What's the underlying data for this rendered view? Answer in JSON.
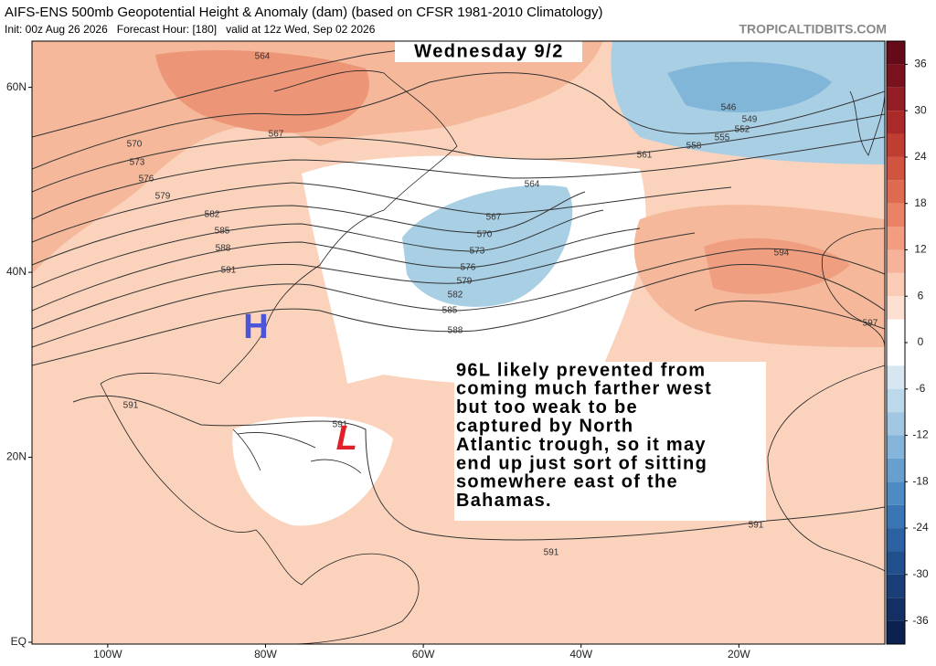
{
  "header": {
    "title": "AIFS-ENS 500mb Geopotential Height & Anomaly (dam) (based on CFSR 1981-2010 Climatology)",
    "subtitle": "Init: 00z Aug 26 2026   Forecast Hour: [180]   valid at 12z Wed, Sep 02 2026",
    "credit": "TROPICALTIDBITS.COM"
  },
  "map": {
    "day_label": "Wednesday 9/2",
    "annotation": [
      "96L likely prevented from",
      "coming much farther west",
      "but too weak to be",
      "captured by North",
      "Atlantic trough, so it may",
      "end up just sort of sitting",
      "somewhere east of the",
      "Bahamas."
    ],
    "high_label": "H",
    "low_label": "L",
    "lonlim": [
      -109.6,
      -1.5
    ],
    "latlim": [
      -0.2,
      65
    ],
    "lon_ticks": [
      {
        "value": -100,
        "label": "100W"
      },
      {
        "value": -80,
        "label": "80W"
      },
      {
        "value": -60,
        "label": "60W"
      },
      {
        "value": -40,
        "label": "40W"
      },
      {
        "value": -20,
        "label": "20W"
      }
    ],
    "lat_ticks": [
      {
        "value": 60,
        "label": "60N"
      },
      {
        "value": 40,
        "label": "40N"
      },
      {
        "value": 20,
        "label": "20N"
      },
      {
        "value": 0,
        "label": "EQ"
      }
    ],
    "contour_labels": [
      564,
      567,
      570,
      573,
      576,
      579,
      582,
      585,
      588,
      591,
      564,
      567,
      570,
      573,
      576,
      579,
      582,
      585,
      588,
      546,
      549,
      552,
      555,
      558,
      561,
      594,
      597,
      591,
      591,
      591,
      591
    ]
  },
  "colorbar": {
    "ylim": [
      -39,
      39
    ],
    "ticks": [
      36,
      30,
      24,
      18,
      12,
      6,
      0,
      -6,
      -12,
      -18,
      -24,
      -30,
      -36
    ]
  }
}
